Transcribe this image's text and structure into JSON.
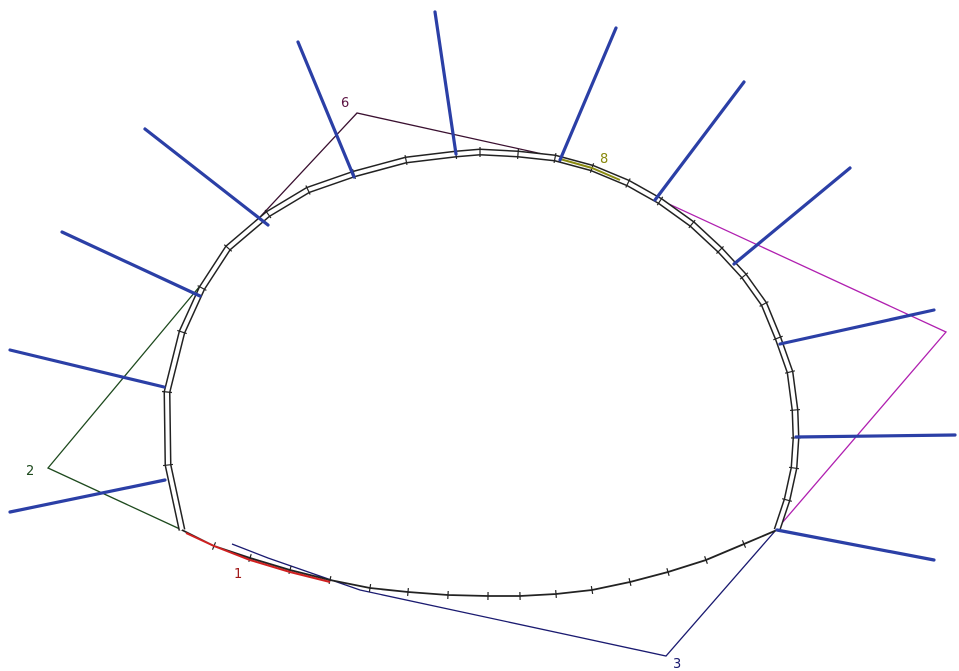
{
  "labels": [
    {
      "id": "1",
      "text": "1",
      "color": "#a01818"
    },
    {
      "id": "2",
      "text": "2",
      "color": "#1e4a1e"
    },
    {
      "id": "3",
      "text": "3",
      "color": "#1a1a70"
    },
    {
      "id": "6",
      "text": "6",
      "color": "#5a1040"
    },
    {
      "id": "8",
      "text": "8",
      "color": "#8a8a10"
    }
  ],
  "colors": {
    "bolt": "#2b3fa6",
    "lining": "#222222",
    "polygon_left": "#1e4a1e",
    "polygon_bottom": "#1a1a70",
    "polygon_right": "#b020b0",
    "polygon_top": "#3a1030",
    "highlight_red": "#d02020",
    "highlight_olive": "#8a8a10"
  }
}
